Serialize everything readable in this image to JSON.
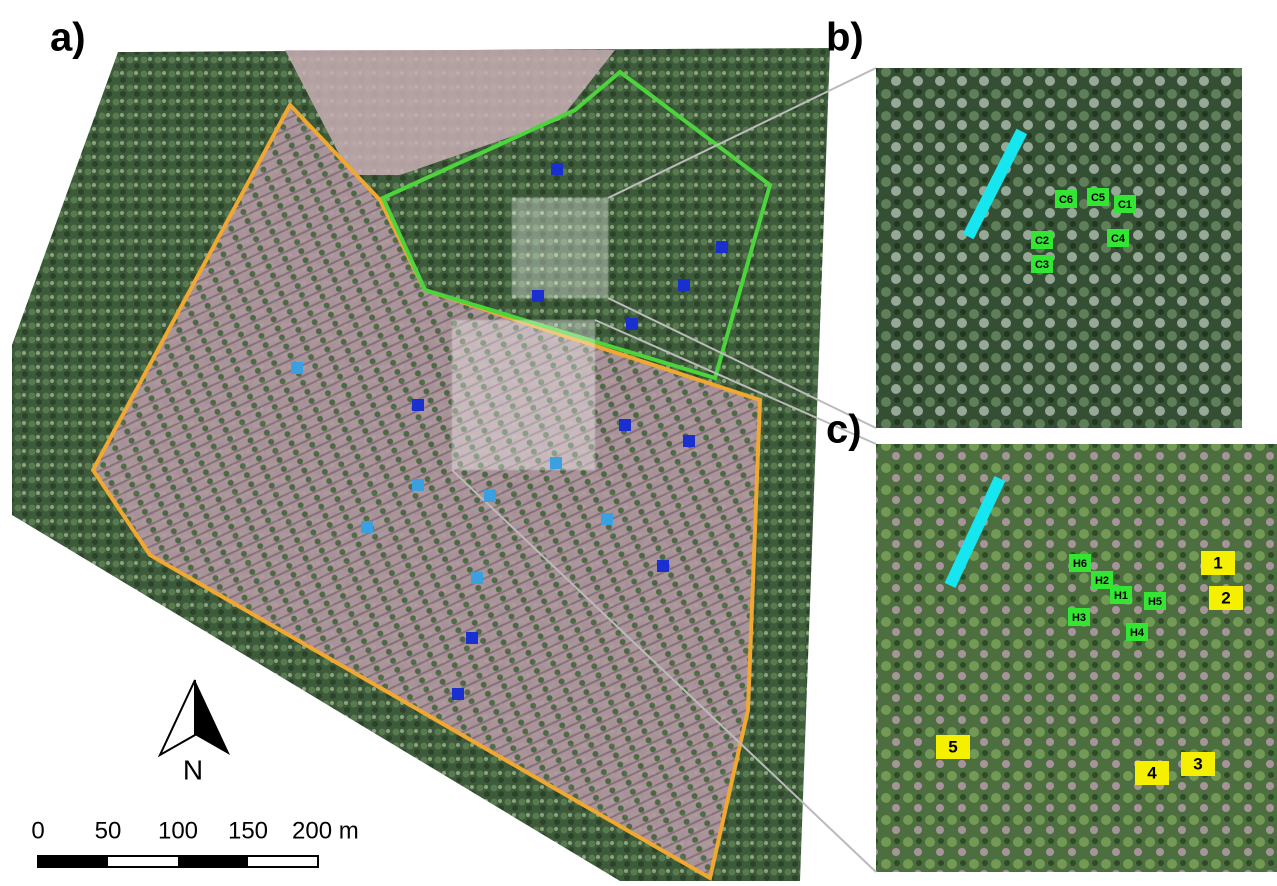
{
  "panels": [
    {
      "label": "a)"
    },
    {
      "label": "b)",
      "plots": [
        "C6",
        "C5",
        "C1",
        "C2",
        "C4",
        "C3"
      ]
    },
    {
      "label": "c)",
      "plots": [
        "H6",
        "H2",
        "H1",
        "H5",
        "H3",
        "H4"
      ],
      "numbers": [
        "1",
        "2",
        "3",
        "4",
        "5"
      ]
    }
  ],
  "north_arrow": "N",
  "scale_bar": {
    "labels": [
      "0",
      "50",
      "100",
      "150",
      "200 m"
    ]
  }
}
